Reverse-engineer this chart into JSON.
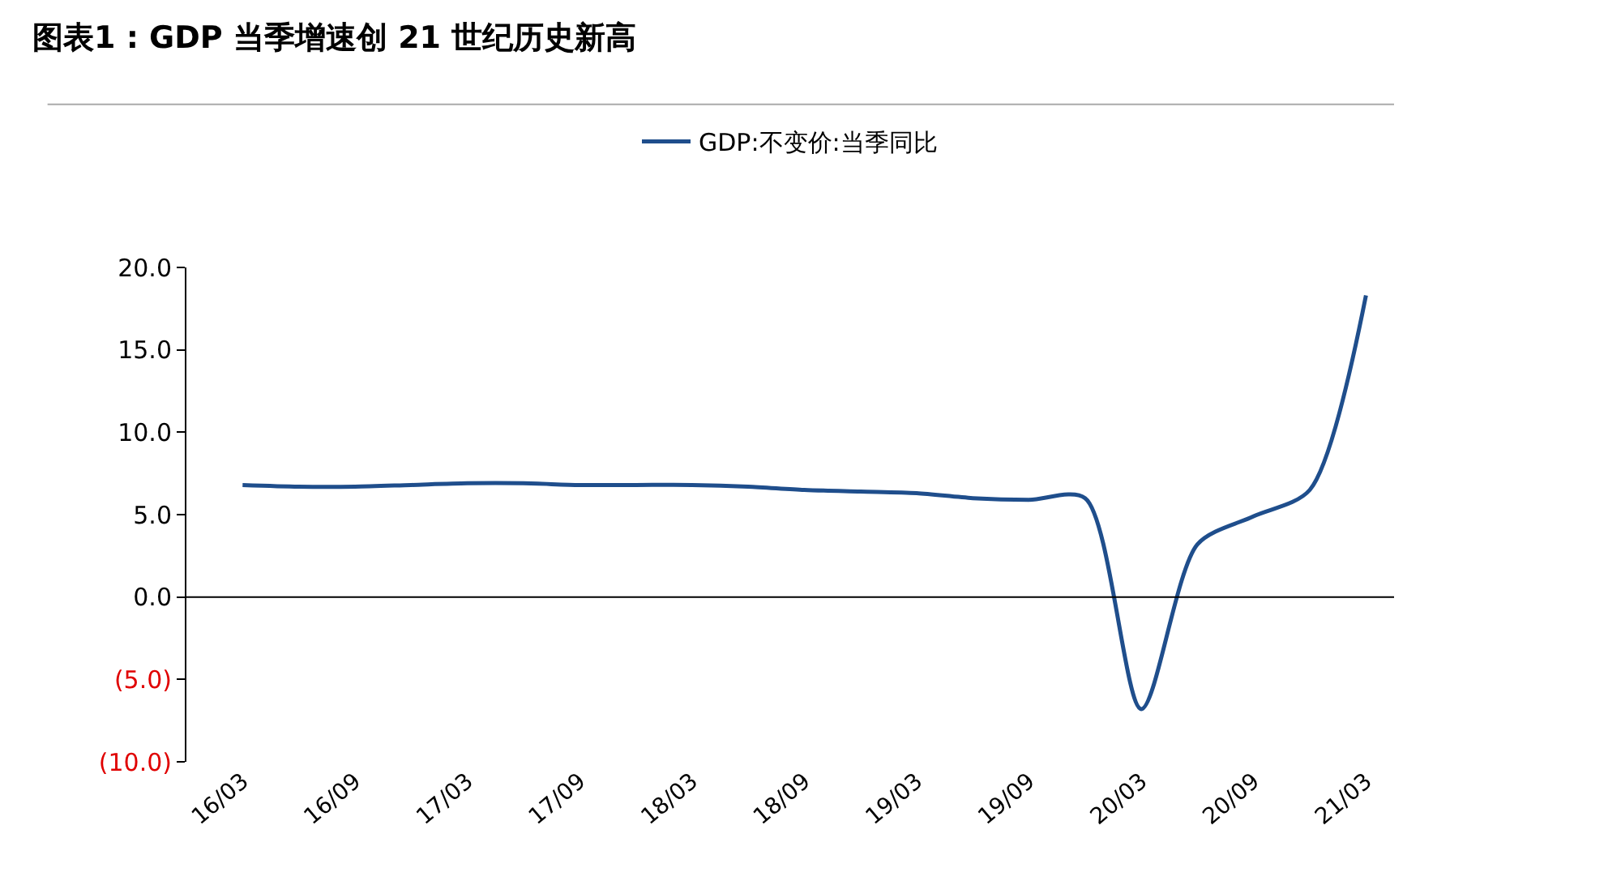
{
  "chart_data": {
    "type": "line",
    "title": "图表1 : GDP 当季增速创 21 世纪历史新高",
    "categories": [
      "16/03",
      null,
      "16/09",
      null,
      "17/03",
      null,
      "17/09",
      null,
      "18/03",
      null,
      "18/09",
      null,
      "19/03",
      null,
      "19/09",
      null,
      "20/03",
      null,
      "20/09",
      null,
      "21/03"
    ],
    "series": [
      {
        "name": "GDP:不变价:当季同比",
        "color": "#1f4e8c",
        "values": [
          6.8,
          6.7,
          6.7,
          6.8,
          6.9,
          6.9,
          6.8,
          6.8,
          6.8,
          6.7,
          6.5,
          6.4,
          6.3,
          6.0,
          5.9,
          6.0,
          -6.8,
          3.2,
          4.9,
          6.5,
          18.3
        ]
      }
    ],
    "ylim": [
      -10,
      20
    ],
    "yticks": [
      {
        "value": -10,
        "label": "(10.0)"
      },
      {
        "value": -5,
        "label": "(5.0)"
      },
      {
        "value": 0,
        "label": "0.0"
      },
      {
        "value": 5,
        "label": "5.0"
      },
      {
        "value": 10,
        "label": "10.0"
      },
      {
        "value": 15,
        "label": "15.0"
      },
      {
        "value": 20,
        "label": "20.0"
      }
    ],
    "ref_lines": [
      {
        "axis": "y",
        "value": 0,
        "color": "#000000"
      }
    ],
    "legend": "top",
    "marker": "none",
    "line_style": "solid"
  }
}
